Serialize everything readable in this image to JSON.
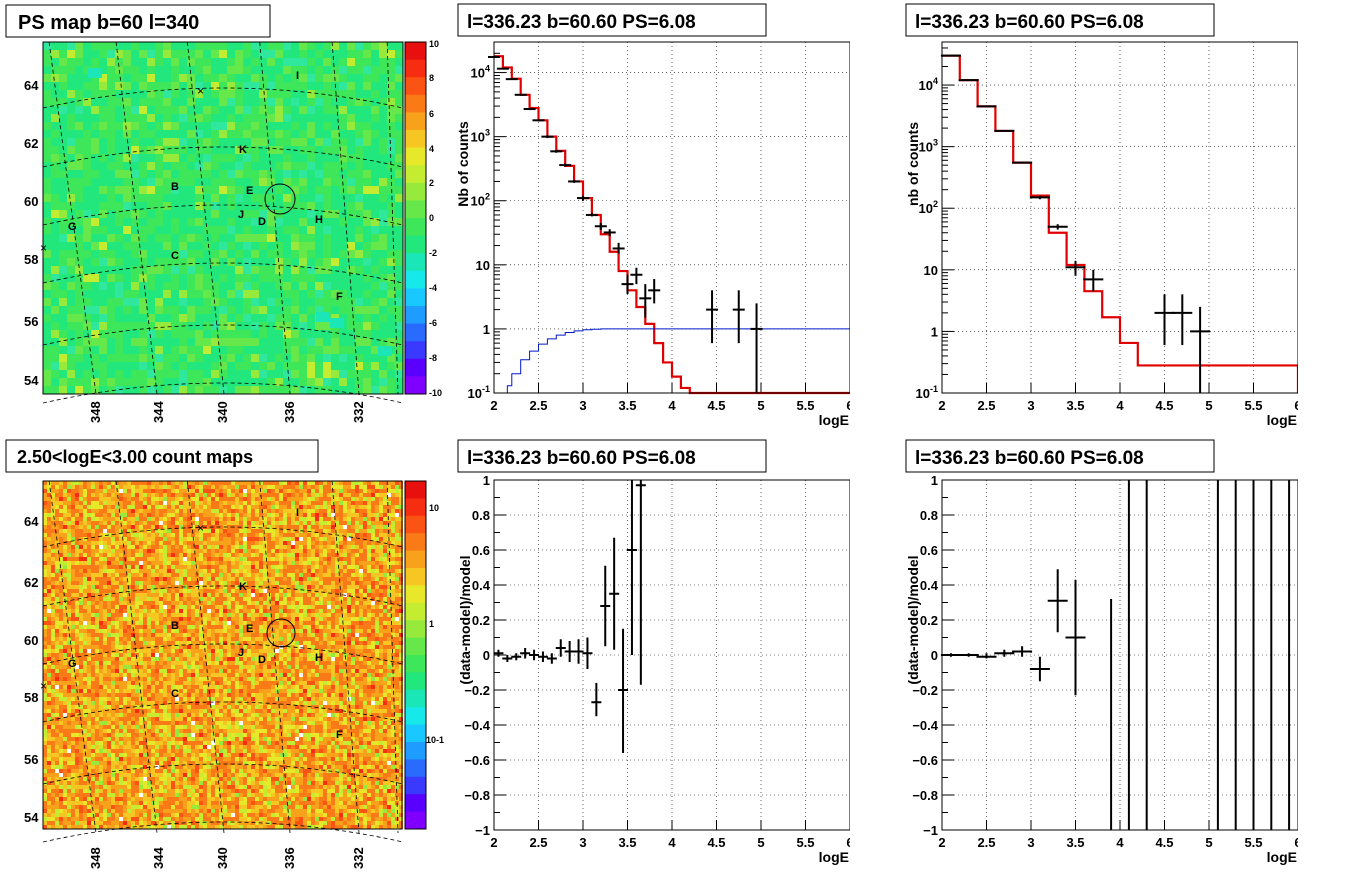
{
  "titles": {
    "ps_map": "PS map b=60 l=340",
    "count_map": "2.50<logE<3.00 count maps",
    "spec_left": "l=336.23 b=60.60 PS=6.08",
    "spec_right": "l=336.23 b=60.60 PS=6.08",
    "res_left": "l=336.23 b=60.60 PS=6.08",
    "res_right": "l=336.23 b=60.60 PS=6.08"
  },
  "axis_labels": {
    "counts_left": "Nb of counts",
    "counts_right": "nb of counts",
    "residual": "(data-model)/model",
    "logE": "logE"
  },
  "map_axes": {
    "lon_ticks": [
      "348",
      "344",
      "340",
      "336",
      "332"
    ],
    "lat_ticks": [
      "64",
      "62",
      "60",
      "58",
      "56",
      "54"
    ]
  },
  "sources": [
    "I",
    "K",
    "B",
    "E",
    "J",
    "D",
    "H",
    "G",
    "C",
    "F"
  ],
  "colorbars": {
    "ps": [
      "10",
      "8",
      "6",
      "4",
      "2",
      "0",
      "-2",
      "-4",
      "-6",
      "-8",
      "-10"
    ],
    "counts": [
      "10",
      "1",
      "10-1"
    ]
  },
  "chart_data": [
    {
      "type": "heatmap",
      "title": "PS map b=60 l=340",
      "xlabel": "",
      "ylabel": "",
      "lon_range": [
        350,
        330
      ],
      "lat_range": [
        53.5,
        65.3
      ],
      "z_range": [
        -10,
        10
      ],
      "sources": [
        "I",
        "K",
        "B",
        "E",
        "J",
        "D",
        "H",
        "G",
        "C",
        "F"
      ]
    },
    {
      "type": "line",
      "title": "l=336.23 b=60.60 PS=6.08",
      "xlabel": "logE",
      "ylabel": "Nb of counts",
      "xlim": [
        2,
        6
      ],
      "ylim": [
        0.1,
        30000
      ],
      "yscale": "log",
      "x_ticks": [
        2,
        2.5,
        3,
        3.5,
        4,
        4.5,
        5,
        5.5,
        6
      ],
      "series": [
        {
          "bin_edges": [
            2.0,
            2.1,
            2.2,
            2.3,
            2.4,
            2.5,
            2.6,
            2.7,
            2.8,
            2.9,
            3.0,
            3.1,
            3.2,
            3.3,
            3.4,
            3.5,
            3.6,
            3.7,
            3.8,
            3.9,
            4.0,
            4.1,
            4.2,
            6.0
          ],
          "values": [
            18000,
            12000,
            8000,
            4500,
            2800,
            1800,
            1000,
            600,
            350,
            200,
            110,
            60,
            30,
            16,
            8,
            4,
            2.2,
            1.2,
            0.6,
            0.3,
            0.18,
            0.12,
            0.1
          ]
        },
        {
          "bin_edges": [
            2.1,
            2.15,
            2.2,
            2.3,
            2.4,
            2.5,
            2.6,
            2.7,
            2.8,
            2.9,
            3.0,
            3.1,
            3.2,
            6.0
          ],
          "values": [
            0.1,
            0.13,
            0.2,
            0.33,
            0.45,
            0.58,
            0.7,
            0.8,
            0.88,
            0.93,
            0.97,
            0.99,
            1.0
          ]
        },
        {
          "x": [
            2.0,
            2.1,
            2.2,
            2.3,
            2.4,
            2.5,
            2.6,
            2.7,
            2.8,
            2.9,
            3.0,
            3.1,
            3.2,
            3.3,
            3.4,
            3.5,
            3.6,
            3.7,
            3.8,
            4.45,
            4.75,
            4.95
          ],
          "y": [
            17500,
            11500,
            7900,
            4500,
            2700,
            1800,
            1000,
            590,
            360,
            200,
            110,
            60,
            40,
            32,
            18,
            5,
            7,
            3,
            4,
            2,
            2,
            1
          ],
          "y_low": [
            17400,
            11400,
            7800,
            4400,
            2600,
            1750,
            950,
            560,
            340,
            190,
            100,
            57,
            35,
            28,
            15,
            3.5,
            5,
            1.5,
            2.5,
            0.6,
            0.6,
            0.1
          ],
          "y_high": [
            17600,
            11600,
            8000,
            4600,
            2800,
            1850,
            1050,
            620,
            380,
            210,
            120,
            64,
            45,
            36,
            22,
            7,
            9,
            5,
            6,
            4,
            4,
            2.5
          ]
        }
      ]
    },
    {
      "type": "line",
      "title": "l=336.23 b=60.60 PS=6.08",
      "xlabel": "logE",
      "ylabel": "nb of counts",
      "xlim": [
        2,
        6
      ],
      "ylim": [
        0.1,
        50000
      ],
      "yscale": "log",
      "x_ticks": [
        2,
        2.5,
        3,
        3.5,
        4,
        4.5,
        5,
        5.5,
        6
      ],
      "series": [
        {
          "bin_edges": [
            2.0,
            2.2,
            2.4,
            2.6,
            2.8,
            3.0,
            3.2,
            3.4,
            3.6,
            3.8,
            4.0,
            4.2,
            6.0
          ],
          "values": [
            30000,
            12000,
            4500,
            1800,
            550,
            160,
            40,
            12,
            4.5,
            1.7,
            0.65,
            0.28,
            0.1
          ]
        },
        {
          "x": [
            2.1,
            2.3,
            2.5,
            2.7,
            2.9,
            3.1,
            3.3,
            3.5,
            3.7,
            4.5,
            4.7,
            4.9
          ],
          "y": [
            30000,
            12000,
            4500,
            1800,
            550,
            150,
            50,
            11,
            7,
            2,
            2,
            1
          ],
          "y_low": [
            29800,
            11900,
            4450,
            1780,
            530,
            140,
            45,
            8,
            4.5,
            0.6,
            0.6,
            0.1
          ],
          "y_high": [
            30200,
            12100,
            4550,
            1820,
            570,
            160,
            55,
            14,
            10,
            4,
            4,
            2.5
          ]
        }
      ]
    },
    {
      "type": "scatter",
      "title": "l=336.23 b=60.60 PS=6.08",
      "xlabel": "logE",
      "ylabel": "(data-model)/model",
      "xlim": [
        2,
        6
      ],
      "ylim": [
        -1,
        1
      ],
      "x_ticks": [
        2,
        2.5,
        3,
        3.5,
        4,
        4.5,
        5,
        5.5,
        6
      ],
      "series": [
        {
          "x": [
            2.05,
            2.15,
            2.25,
            2.35,
            2.45,
            2.55,
            2.65,
            2.75,
            2.85,
            2.95,
            3.05,
            3.15,
            3.25,
            3.35,
            3.45,
            3.55,
            3.65
          ],
          "y": [
            0.01,
            -0.02,
            -0.01,
            0.01,
            0,
            -0.01,
            -0.02,
            0.04,
            0.02,
            0.02,
            0.01,
            -0.27,
            0.28,
            0.35,
            -0.2,
            0.6,
            0.97
          ],
          "y_low": [
            -0.01,
            -0.04,
            -0.03,
            -0.02,
            -0.03,
            -0.04,
            -0.05,
            -0.01,
            -0.04,
            -0.05,
            -0.08,
            -0.35,
            0.05,
            0.03,
            -0.56,
            0,
            -0.17
          ],
          "y_high": [
            0.03,
            0,
            0.01,
            0.04,
            0.03,
            0.02,
            0.01,
            0.09,
            0.08,
            0.09,
            0.1,
            -0.16,
            0.51,
            0.67,
            0.15,
            1,
            1
          ]
        }
      ]
    },
    {
      "type": "scatter",
      "title": "l=336.23 b=60.60 PS=6.08",
      "xlabel": "logE",
      "ylabel": "(data-model)/model",
      "xlim": [
        2,
        6
      ],
      "ylim": [
        -1,
        1
      ],
      "x_ticks": [
        2,
        2.5,
        3,
        3.5,
        4,
        4.5,
        5,
        5.5,
        6
      ],
      "series": [
        {
          "x": [
            2.1,
            2.3,
            2.5,
            2.7,
            2.9,
            3.1,
            3.3,
            3.5,
            3.9,
            4.1,
            4.3,
            5.1,
            5.3,
            5.5,
            5.7,
            5.9
          ],
          "y": [
            0,
            0,
            -0.01,
            0.01,
            0.02,
            -0.08,
            0.31,
            0.1,
            -1,
            1,
            1,
            1,
            1,
            1,
            1,
            1
          ],
          "y_low": [
            -0.01,
            -0.01,
            -0.02,
            -0.01,
            -0.01,
            -0.15,
            0.13,
            -0.23,
            -1,
            -1,
            -1,
            -1,
            -1,
            -1,
            -1,
            -1
          ],
          "y_high": [
            0.01,
            0.01,
            0.01,
            0.03,
            0.05,
            -0.01,
            0.49,
            0.43,
            0.32,
            1,
            1,
            1,
            1,
            1,
            1,
            1
          ]
        }
      ]
    }
  ]
}
